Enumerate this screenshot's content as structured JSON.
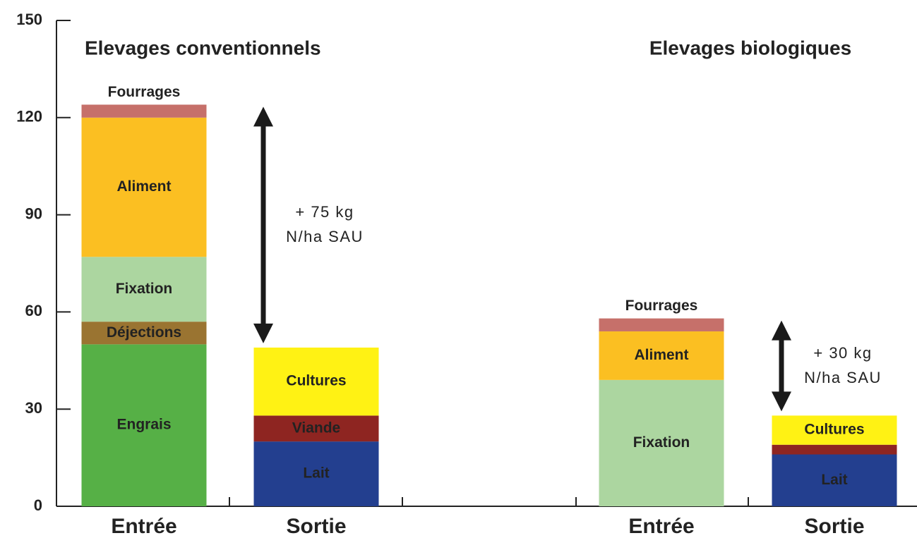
{
  "chart_data": {
    "type": "stacked-bar",
    "ylim": [
      0,
      150
    ],
    "yticks": [
      0,
      30,
      60,
      90,
      120,
      150
    ],
    "groups": [
      {
        "title": "Elevages conventionnels",
        "annotation": [
          "+ 75 kg",
          "N/ha SAU"
        ],
        "bars": [
          {
            "category": "Entrée",
            "segments": [
              {
                "name": "Engrais",
                "value": 50,
                "color": "#56b046",
                "label_color": "#222222"
              },
              {
                "name": "Déjections",
                "value": 7,
                "color": "#9a7431",
                "label_color": "#ffffff"
              },
              {
                "name": "Fixation",
                "value": 20,
                "color": "#acd6a0",
                "label_color": "#222222"
              },
              {
                "name": "Aliment",
                "value": 43,
                "color": "#fbbf22",
                "label_color": "#222222"
              },
              {
                "name": "Fourrages",
                "value": 4,
                "color": "#c6706a",
                "label_color": "#222222"
              }
            ]
          },
          {
            "category": "Sortie",
            "segments": [
              {
                "name": "Lait",
                "value": 20,
                "color": "#233f8f",
                "label_color": "#ffffff"
              },
              {
                "name": "Viande",
                "value": 8,
                "color": "#8e2521",
                "label_color": "#ffffff"
              },
              {
                "name": "Cultures",
                "value": 21,
                "color": "#fff214",
                "label_color": "#222222"
              }
            ]
          }
        ]
      },
      {
        "title": "Elevages biologiques",
        "annotation": [
          "+ 30 kg",
          "N/ha SAU"
        ],
        "bars": [
          {
            "category": "Entrée",
            "segments": [
              {
                "name": "Fixation",
                "value": 39,
                "color": "#acd6a0",
                "label_color": "#222222"
              },
              {
                "name": "Aliment",
                "value": 15,
                "color": "#fbbf22",
                "label_color": "#222222"
              },
              {
                "name": "Fourrages",
                "value": 4,
                "color": "#c6706a",
                "label_color": "#222222"
              }
            ]
          },
          {
            "category": "Sortie",
            "segments": [
              {
                "name": "Lait",
                "value": 16,
                "color": "#233f8f",
                "label_color": "#ffffff"
              },
              {
                "name": null,
                "value": 3,
                "color": "#8e2521",
                "label_color": "#ffffff"
              },
              {
                "name": "Cultures",
                "value": 9,
                "color": "#fff214",
                "label_color": "#222222"
              }
            ]
          }
        ]
      }
    ]
  }
}
